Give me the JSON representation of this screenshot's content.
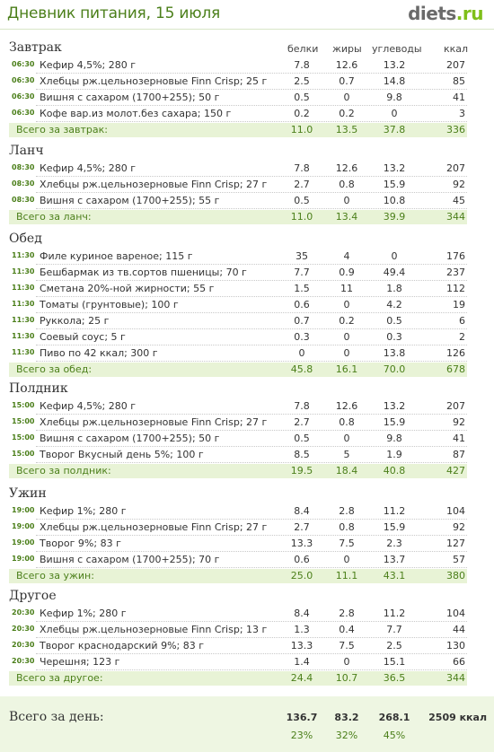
{
  "header": {
    "title": "Дневник питания, 15 июля",
    "logo_main": "diets",
    "logo_tld": ".ru"
  },
  "columns": {
    "protein": "белки",
    "fat": "жиры",
    "carbs": "углеводы",
    "kcal": "ккал"
  },
  "sections": [
    {
      "title": "Завтрак",
      "total_label": "Всего за завтрак:",
      "items": [
        {
          "time": "06:30",
          "name": "Кефир 4,5%; 280 г",
          "p": "7.8",
          "f": "12.6",
          "c": "13.2",
          "k": "207"
        },
        {
          "time": "06:30",
          "name": "Хлебцы рж.цельнозерновые Finn Crisp; 25 г",
          "p": "2.5",
          "f": "0.7",
          "c": "14.8",
          "k": "85"
        },
        {
          "time": "06:30",
          "name": "Вишня с сахаром (1700+255); 50 г",
          "p": "0.5",
          "f": "0",
          "c": "9.8",
          "k": "41"
        },
        {
          "time": "06:30",
          "name": "Кофе вар.из молот.без сахара; 150 г",
          "p": "0.2",
          "f": "0.2",
          "c": "0",
          "k": "3"
        }
      ],
      "total": {
        "p": "11.0",
        "f": "13.5",
        "c": "37.8",
        "k": "336"
      }
    },
    {
      "title": "Ланч",
      "total_label": "Всего за ланч:",
      "items": [
        {
          "time": "08:30",
          "name": "Кефир 4,5%; 280 г",
          "p": "7.8",
          "f": "12.6",
          "c": "13.2",
          "k": "207"
        },
        {
          "time": "08:30",
          "name": "Хлебцы рж.цельнозерновые Finn Crisp; 27 г",
          "p": "2.7",
          "f": "0.8",
          "c": "15.9",
          "k": "92"
        },
        {
          "time": "08:30",
          "name": "Вишня с сахаром (1700+255); 55 г",
          "p": "0.5",
          "f": "0",
          "c": "10.8",
          "k": "45"
        }
      ],
      "total": {
        "p": "11.0",
        "f": "13.4",
        "c": "39.9",
        "k": "344"
      }
    },
    {
      "title": "Обед",
      "total_label": "Всего за обед:",
      "items": [
        {
          "time": "11:30",
          "name": "Филе куриное вареное; 115 г",
          "p": "35",
          "f": "4",
          "c": "0",
          "k": "176"
        },
        {
          "time": "11:30",
          "name": "Бешбармак из тв.сортов пшеницы; 70 г",
          "p": "7.7",
          "f": "0.9",
          "c": "49.4",
          "k": "237"
        },
        {
          "time": "11:30",
          "name": "Сметана 20%-ной жирности; 55 г",
          "p": "1.5",
          "f": "11",
          "c": "1.8",
          "k": "112"
        },
        {
          "time": "11:30",
          "name": "Томаты (грунтовые); 100 г",
          "p": "0.6",
          "f": "0",
          "c": "4.2",
          "k": "19"
        },
        {
          "time": "11:30",
          "name": "Руккола; 25 г",
          "p": "0.7",
          "f": "0.2",
          "c": "0.5",
          "k": "6"
        },
        {
          "time": "11:30",
          "name": "Соевый соус; 5 г",
          "p": "0.3",
          "f": "0",
          "c": "0.3",
          "k": "2"
        },
        {
          "time": "11:30",
          "name": "Пиво по 42 ккал; 300 г",
          "p": "0",
          "f": "0",
          "c": "13.8",
          "k": "126"
        }
      ],
      "total": {
        "p": "45.8",
        "f": "16.1",
        "c": "70.0",
        "k": "678"
      }
    },
    {
      "title": "Полдник",
      "total_label": "Всего за полдник:",
      "items": [
        {
          "time": "15:00",
          "name": "Кефир 4,5%; 280 г",
          "p": "7.8",
          "f": "12.6",
          "c": "13.2",
          "k": "207"
        },
        {
          "time": "15:00",
          "name": "Хлебцы рж.цельнозерновые Finn Crisp; 27 г",
          "p": "2.7",
          "f": "0.8",
          "c": "15.9",
          "k": "92"
        },
        {
          "time": "15:00",
          "name": "Вишня с сахаром (1700+255); 50 г",
          "p": "0.5",
          "f": "0",
          "c": "9.8",
          "k": "41"
        },
        {
          "time": "15:00",
          "name": "Творог Вкусный день 5%; 100 г",
          "p": "8.5",
          "f": "5",
          "c": "1.9",
          "k": "87"
        }
      ],
      "total": {
        "p": "19.5",
        "f": "18.4",
        "c": "40.8",
        "k": "427"
      }
    },
    {
      "title": "Ужин",
      "total_label": "Всего за ужин:",
      "items": [
        {
          "time": "19:00",
          "name": "Кефир 1%; 280 г",
          "p": "8.4",
          "f": "2.8",
          "c": "11.2",
          "k": "104"
        },
        {
          "time": "19:00",
          "name": "Хлебцы рж.цельнозерновые Finn Crisp; 27 г",
          "p": "2.7",
          "f": "0.8",
          "c": "15.9",
          "k": "92"
        },
        {
          "time": "19:00",
          "name": "Творог  9%; 83 г",
          "p": "13.3",
          "f": "7.5",
          "c": "2.3",
          "k": "127"
        },
        {
          "time": "19:00",
          "name": "Вишня с сахаром (1700+255); 70 г",
          "p": "0.6",
          "f": "0",
          "c": "13.7",
          "k": "57"
        }
      ],
      "total": {
        "p": "25.0",
        "f": "11.1",
        "c": "43.1",
        "k": "380"
      }
    },
    {
      "title": "Другое",
      "total_label": "Всего за другое:",
      "items": [
        {
          "time": "20:30",
          "name": "Кефир 1%; 280 г",
          "p": "8.4",
          "f": "2.8",
          "c": "11.2",
          "k": "104"
        },
        {
          "time": "20:30",
          "name": "Хлебцы рж.цельнозерновые Finn Crisp; 13 г",
          "p": "1.3",
          "f": "0.4",
          "c": "7.7",
          "k": "44"
        },
        {
          "time": "20:30",
          "name": "Творог краснодарский 9%; 83 г",
          "p": "13.3",
          "f": "7.5",
          "c": "2.5",
          "k": "130"
        },
        {
          "time": "20:30",
          "name": "Черешня; 123 г",
          "p": "1.4",
          "f": "0",
          "c": "15.1",
          "k": "66"
        }
      ],
      "total": {
        "p": "24.4",
        "f": "10.7",
        "c": "36.5",
        "k": "344"
      }
    }
  ],
  "day": {
    "label": "Всего за день:",
    "p": "136.7",
    "f": "83.2",
    "c": "268.1",
    "k": "2509 ккал",
    "pp": "23%",
    "fp": "32%",
    "cp": "45%"
  }
}
